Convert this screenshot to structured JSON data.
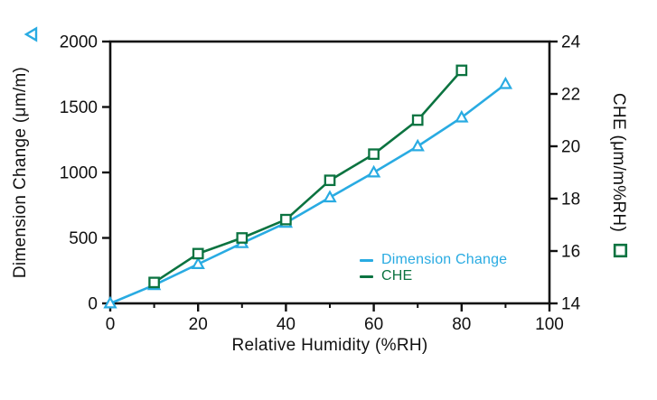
{
  "chart_data": {
    "type": "line",
    "title": "",
    "xlabel": "Relative Humidity (%RH)",
    "xlim": [
      0,
      100
    ],
    "x_major_ticks": [
      0,
      20,
      40,
      60,
      80,
      100
    ],
    "x_minor_ticks": [
      10,
      30,
      50,
      70,
      90
    ],
    "grid": "off",
    "legend_position": "inside-bottom-right",
    "left_axis": {
      "label": "Dimension Change (μm/m)",
      "lim": [
        0,
        2000
      ],
      "ticks": [
        0,
        500,
        1000,
        1500,
        2000
      ],
      "marker_icon": "open-triangle-left",
      "color": "#29ABE2"
    },
    "right_axis": {
      "label": "CHE (μm/m%RH)",
      "lim": [
        14,
        24
      ],
      "ticks": [
        14,
        16,
        18,
        20,
        22,
        24
      ],
      "marker_icon": "open-square",
      "color": "#0B7340"
    },
    "series": [
      {
        "name": "Dimension Change",
        "axis": "left",
        "color": "#29ABE2",
        "marker": "open-triangle-up",
        "x": [
          0,
          10,
          20,
          30,
          40,
          50,
          60,
          70,
          80,
          90
        ],
        "y": [
          0,
          140,
          300,
          460,
          615,
          810,
          1000,
          1200,
          1420,
          1675
        ]
      },
      {
        "name": "CHE",
        "axis": "right",
        "color": "#0B7340",
        "marker": "open-square",
        "x": [
          10,
          20,
          30,
          40,
          50,
          60,
          70,
          80
        ],
        "y": [
          14.8,
          15.9,
          16.5,
          17.2,
          18.7,
          19.7,
          21.0,
          22.9
        ]
      }
    ]
  },
  "colors": {
    "axis": "#111111",
    "background": "#FFFFFF",
    "cyan": "#29ABE2",
    "green": "#0B7340"
  }
}
